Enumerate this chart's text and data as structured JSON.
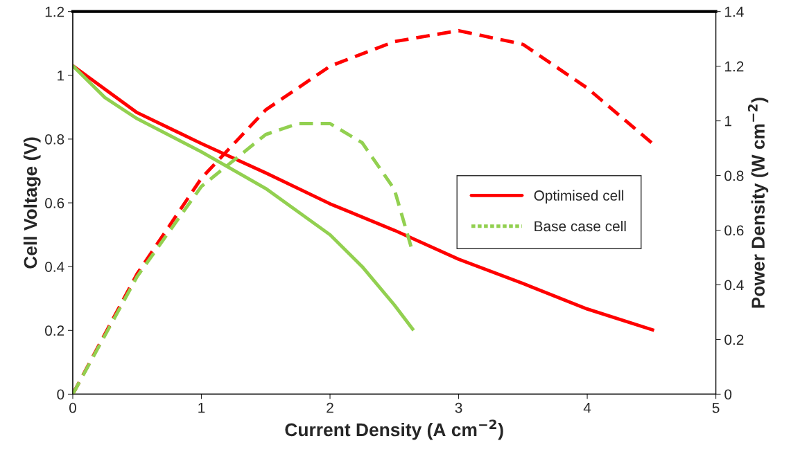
{
  "chart_data": {
    "type": "line",
    "xlabel": "Current Density (A cm$^{−2}$)",
    "ylabel": "Cell Voltage (V)",
    "y2label": "Power Density (W cm$^{−2}$)",
    "xlim": [
      0,
      5
    ],
    "xticks": [
      0,
      1,
      2,
      3,
      4,
      5
    ],
    "ylim": [
      0,
      1.2
    ],
    "yticks": [
      0,
      0.2,
      0.4,
      0.6,
      0.8,
      1,
      1.2
    ],
    "y2lim": [
      0,
      1.4
    ],
    "y2ticks": [
      0,
      0.2,
      0.4,
      0.6,
      0.8,
      1,
      1.2,
      1.4
    ],
    "grid": false,
    "legend": "right",
    "marker": "none",
    "series": [
      {
        "name": "Optimised cell",
        "color": "#ff0000",
        "line_style": "solid",
        "x": [
          0,
          0.5,
          1,
          1.5,
          2,
          2.5,
          3,
          3.5,
          4,
          4.52
        ],
        "values": [
          1.03,
          0.883,
          0.786,
          0.694,
          0.597,
          0.514,
          0.423,
          0.347,
          0.267,
          0.2
        ]
      },
      {
        "color": "#92d050",
        "line_style": "solid",
        "x": [
          0,
          0.25,
          0.5,
          1,
          1.5,
          2,
          2.25,
          2.5,
          2.65
        ],
        "values": [
          1.03,
          0.93,
          0.864,
          0.76,
          0.645,
          0.5,
          0.4,
          0.28,
          0.2
        ]
      },
      {
        "color": "#ff0000",
        "line_style": "dashed",
        "axis": "y2",
        "x": [
          0,
          0.5,
          1,
          1.5,
          2,
          2.5,
          3,
          3.5,
          4,
          4.5
        ],
        "values": [
          0,
          0.44,
          0.79,
          1.04,
          1.2,
          1.29,
          1.33,
          1.28,
          1.12,
          0.92
        ]
      },
      {
        "name": "Base case cell",
        "color": "#92d050",
        "line_style": "dashed",
        "axis": "y2",
        "x": [
          0,
          0.5,
          1,
          1.5,
          1.75,
          2,
          2.25,
          2.5,
          2.63
        ],
        "values": [
          0,
          0.43,
          0.76,
          0.95,
          0.99,
          0.99,
          0.92,
          0.75,
          0.54
        ]
      }
    ]
  }
}
